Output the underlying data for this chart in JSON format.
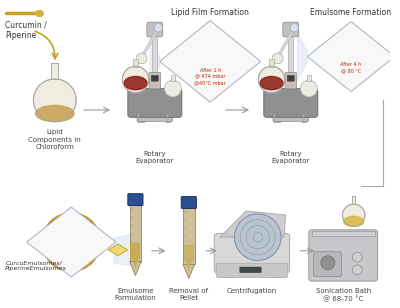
{
  "bg_color": "#ffffff",
  "label_curcumin": "Curcumin /\nPiperine",
  "label_lipid_film": "Lipid Film Formation",
  "label_emulsome_formation": "Emulsome Formation",
  "label_curcu_emulsomes": "CurcuEmulsomes/\nPiperineEmulsomes",
  "annotation_1h": "After 1 h\n@ 474 mbar\n@40°C mbar",
  "annotation_4h": "After 4 h\n@ 80 °C",
  "label_lipid": "Lipid\nComponents in\nChloroform",
  "label_rotary1": "Rotary\nEvaporator",
  "label_rotary2": "Rotary\nEvaporator",
  "label_sonication": "Sonication Bath\n@ 68-70 °C",
  "label_centrifuge": "Centrifugation",
  "label_pellet": "Removal of\nPellet",
  "label_emulsome_form": "Emulsome\nFormulation",
  "arrow_color": "#999999",
  "text_red": "#cc2200",
  "text_dark": "#333333",
  "text_label": "#444444"
}
